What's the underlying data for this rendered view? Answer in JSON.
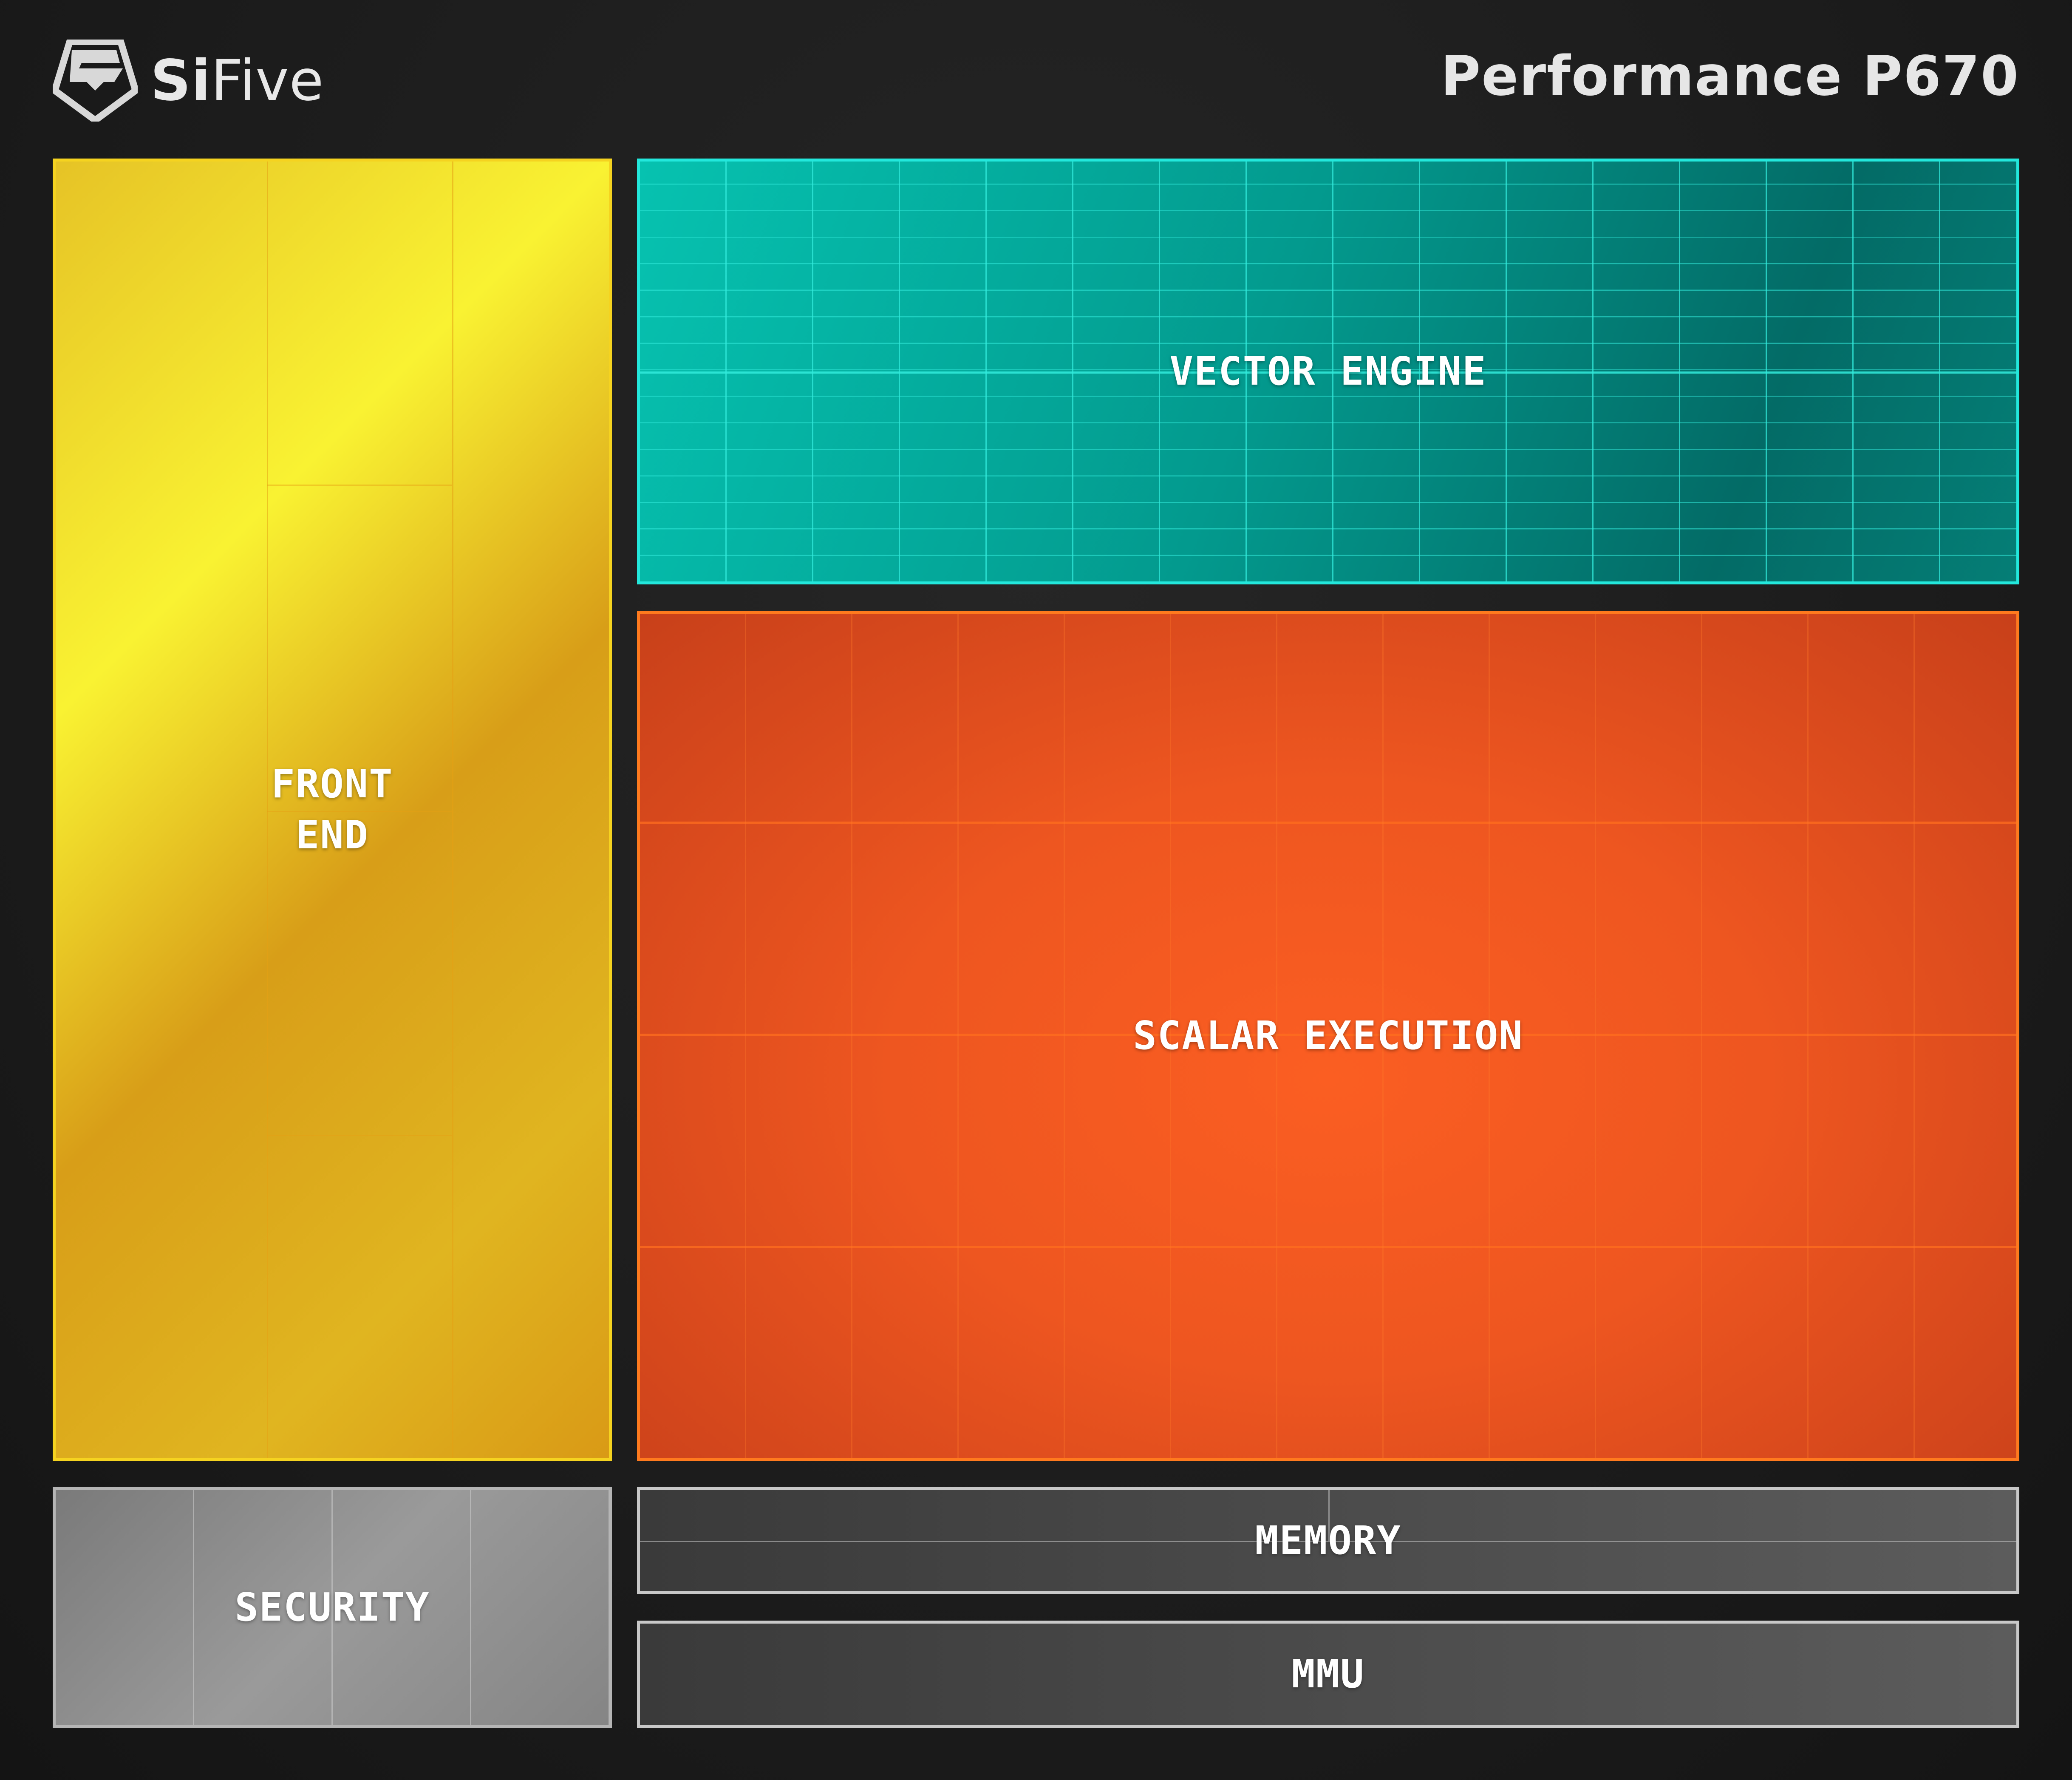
{
  "header": {
    "brand": {
      "bold": "Si",
      "light": "Five",
      "icon": "sifive-logo-icon"
    },
    "title": "Performance P670"
  },
  "blocks": {
    "front_end": {
      "label": "FRONT\nEND",
      "color": "#f5d320"
    },
    "vector_engine": {
      "label": "VECTOR ENGINE",
      "color": "#05b3a6"
    },
    "scalar_execution": {
      "label": "SCALAR EXECUTION",
      "color": "#f05a22"
    },
    "security": {
      "label": "SECURITY",
      "color": "#8a8a8a"
    },
    "memory": {
      "label": "MEMORY",
      "color": "#4a4a4a"
    },
    "mmu": {
      "label": "MMU",
      "color": "#4a4a4a"
    }
  }
}
